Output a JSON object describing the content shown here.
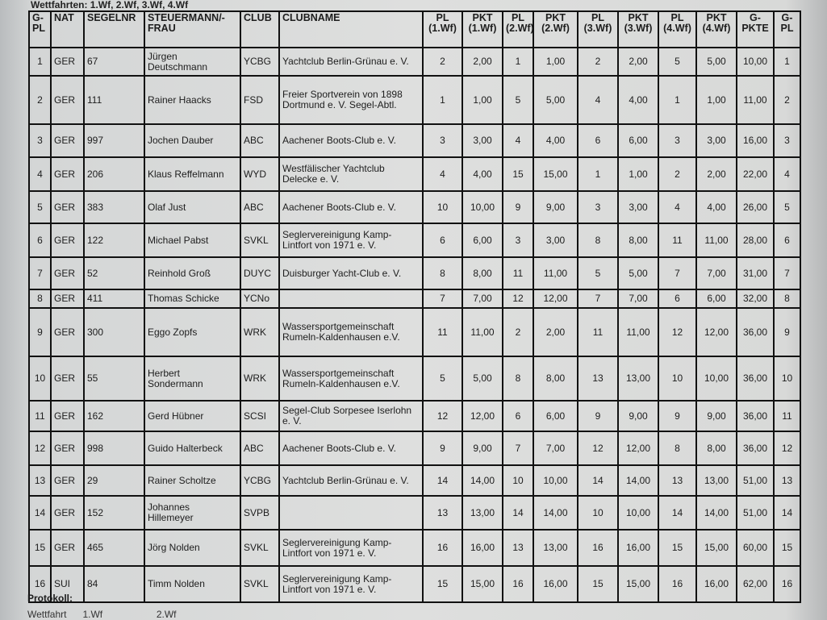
{
  "top_caption": "Wettfahrten: 1.Wf, 2.Wf, 3.Wf, 4.Wf",
  "headers": [
    "G-PL",
    "NAT",
    "SEGELNR",
    "STEUERMANN/-FRAU",
    "CLUB",
    "CLUBNAME",
    "PL (1.Wf)",
    "PKT (1.Wf)",
    "PL (2.Wf)",
    "PKT (2.Wf)",
    "PL (3.Wf)",
    "PKT (3.Wf)",
    "PL (4.Wf)",
    "PKT (4.Wf)",
    "G-PKTE",
    "G-PL"
  ],
  "rows": [
    [
      "1",
      "GER",
      "67",
      "Jürgen Deutschmann",
      "YCBG",
      "Yachtclub Berlin-Grünau e. V.",
      "2",
      "2,00",
      "1",
      "1,00",
      "2",
      "2,00",
      "5",
      "5,00",
      "10,00",
      "1"
    ],
    [
      "2",
      "GER",
      "111",
      "Rainer Haacks",
      "FSD",
      "Freier Sportverein von 1898 Dortmund e. V. Segel-Abtl.",
      "1",
      "1,00",
      "5",
      "5,00",
      "4",
      "4,00",
      "1",
      "1,00",
      "11,00",
      "2"
    ],
    [
      "3",
      "GER",
      "997",
      "Jochen Dauber",
      "ABC",
      "Aachener Boots-Club e. V.",
      "3",
      "3,00",
      "4",
      "4,00",
      "6",
      "6,00",
      "3",
      "3,00",
      "16,00",
      "3"
    ],
    [
      "4",
      "GER",
      "206",
      "Klaus Reffelmann",
      "WYD",
      "Westfälischer Yachtclub Delecke e. V.",
      "4",
      "4,00",
      "15",
      "15,00",
      "1",
      "1,00",
      "2",
      "2,00",
      "22,00",
      "4"
    ],
    [
      "5",
      "GER",
      "383",
      "Olaf Just",
      "ABC",
      "Aachener Boots-Club e. V.",
      "10",
      "10,00",
      "9",
      "9,00",
      "3",
      "3,00",
      "4",
      "4,00",
      "26,00",
      "5"
    ],
    [
      "6",
      "GER",
      "122",
      "Michael Pabst",
      "SVKL",
      "Seglervereinigung Kamp-Lintfort von 1971 e. V.",
      "6",
      "6,00",
      "3",
      "3,00",
      "8",
      "8,00",
      "11",
      "11,00",
      "28,00",
      "6"
    ],
    [
      "7",
      "GER",
      "52",
      "Reinhold Groß",
      "DUYC",
      "Duisburger Yacht-Club e. V.",
      "8",
      "8,00",
      "11",
      "11,00",
      "5",
      "5,00",
      "7",
      "7,00",
      "31,00",
      "7"
    ],
    [
      "8",
      "GER",
      "411",
      "Thomas Schicke",
      "YCNo",
      "",
      "7",
      "7,00",
      "12",
      "12,00",
      "7",
      "7,00",
      "6",
      "6,00",
      "32,00",
      "8"
    ],
    [
      "9",
      "GER",
      "300",
      "Eggo Zopfs",
      "WRK",
      "Wassersportgemeinschaft Rumeln-Kaldenhausen e.V.",
      "11",
      "11,00",
      "2",
      "2,00",
      "11",
      "11,00",
      "12",
      "12,00",
      "36,00",
      "9"
    ],
    [
      "10",
      "GER",
      "55",
      "Herbert Sondermann",
      "WRK",
      "Wassersportgemeinschaft Rumeln-Kaldenhausen e.V.",
      "5",
      "5,00",
      "8",
      "8,00",
      "13",
      "13,00",
      "10",
      "10,00",
      "36,00",
      "10"
    ],
    [
      "11",
      "GER",
      "162",
      "Gerd Hübner",
      "SCSI",
      "Segel-Club Sorpesee Iserlohn e. V.",
      "12",
      "12,00",
      "6",
      "6,00",
      "9",
      "9,00",
      "9",
      "9,00",
      "36,00",
      "11"
    ],
    [
      "12",
      "GER",
      "998",
      "Guido Halterbeck",
      "ABC",
      "Aachener Boots-Club e. V.",
      "9",
      "9,00",
      "7",
      "7,00",
      "12",
      "12,00",
      "8",
      "8,00",
      "36,00",
      "12"
    ],
    [
      "13",
      "GER",
      "29",
      "Rainer Scholtze",
      "YCBG",
      "Yachtclub Berlin-Grünau e. V.",
      "14",
      "14,00",
      "10",
      "10,00",
      "14",
      "14,00",
      "13",
      "13,00",
      "51,00",
      "13"
    ],
    [
      "14",
      "GER",
      "152",
      "Johannes Hillemeyer",
      "SVPB",
      "",
      "13",
      "13,00",
      "14",
      "14,00",
      "10",
      "10,00",
      "14",
      "14,00",
      "51,00",
      "14"
    ],
    [
      "15",
      "GER",
      "465",
      "Jörg Nolden",
      "SVKL",
      "Seglervereinigung Kamp-Lintfort von 1971 e. V.",
      "16",
      "16,00",
      "13",
      "13,00",
      "16",
      "16,00",
      "15",
      "15,00",
      "60,00",
      "15"
    ],
    [
      "16",
      "SUI",
      "84",
      "Timm Nolden",
      "SVKL",
      "Seglervereinigung Kamp-Lintfort von 1971 e. V.",
      "15",
      "15,00",
      "16",
      "16,00",
      "15",
      "15,00",
      "16",
      "16,00",
      "62,00",
      "16"
    ]
  ],
  "bottom_caption": "Protokoll:",
  "bottom_caption2": "Wettfahrt      1.Wf                    2.Wf"
}
